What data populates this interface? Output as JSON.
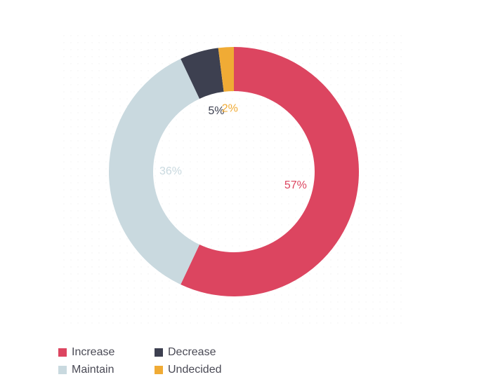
{
  "chart_data": {
    "type": "donut",
    "categories": [
      "Increase",
      "Maintain",
      "Decrease",
      "Undecided"
    ],
    "values": [
      57,
      36,
      5,
      2
    ],
    "value_labels": [
      "57%",
      "36%",
      "5%",
      "2%"
    ],
    "colors": [
      "#dc4560",
      "#c9d9df",
      "#3d4050",
      "#f0ab35"
    ]
  }
}
